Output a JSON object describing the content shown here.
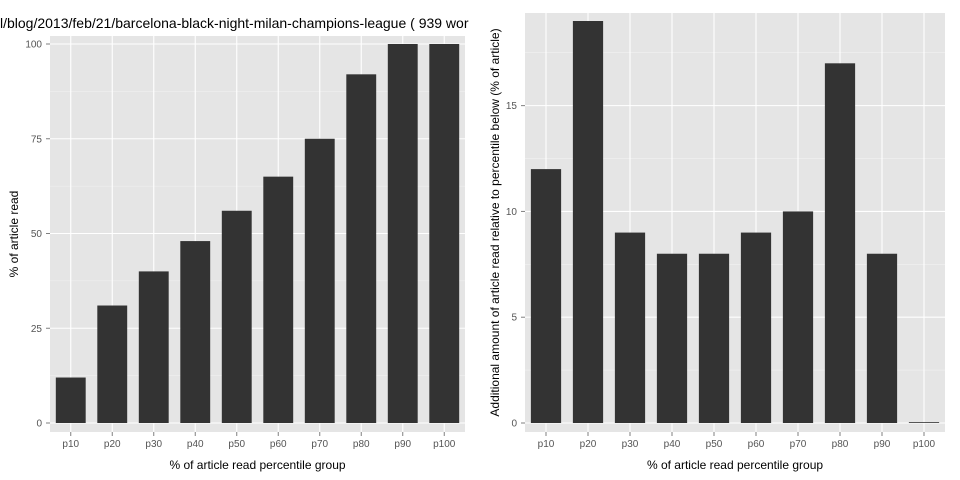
{
  "title": "l/blog/2013/feb/21/barcelona-black-night-milan-champions-league ( 939 wor",
  "colors": {
    "panel": "#e5e5e5",
    "grid_major": "#ffffff",
    "grid_minor": "#f2f2f2",
    "bar": "#333333",
    "tick": "#555555"
  },
  "chart_data": [
    {
      "type": "bar",
      "categories": [
        "p10",
        "p20",
        "p30",
        "p40",
        "p50",
        "p60",
        "p70",
        "p80",
        "p90",
        "p100"
      ],
      "values": [
        12,
        31,
        40,
        48,
        56,
        65,
        75,
        92,
        100,
        100
      ],
      "xlabel": "% of article read percentile group",
      "ylabel": "% of article read",
      "ylim": [
        0,
        100
      ],
      "yticks": [
        0,
        25,
        50,
        75,
        100
      ],
      "grid": true
    },
    {
      "type": "bar",
      "categories": [
        "p10",
        "p20",
        "p30",
        "p40",
        "p50",
        "p60",
        "p70",
        "p80",
        "p90",
        "p100"
      ],
      "values": [
        12,
        19,
        9,
        8,
        8,
        9,
        10,
        17,
        8,
        0
      ],
      "xlabel": "% of article read percentile group",
      "ylabel": "Additional amount of article read relative to percentile below (% of article)",
      "ylim": [
        0,
        19
      ],
      "yticks": [
        0,
        5,
        10,
        15
      ],
      "grid": true
    }
  ]
}
